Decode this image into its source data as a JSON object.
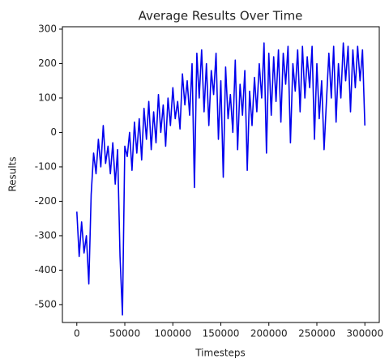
{
  "chart_data": {
    "type": "line",
    "title": "Average Results Over Time",
    "x_label": "Timesteps",
    "y_label": "Results",
    "color": "#0000ee",
    "x": [
      0,
      2500,
      5000,
      7500,
      10000,
      12500,
      15000,
      17500,
      20000,
      22500,
      25000,
      27500,
      30000,
      32500,
      35000,
      37500,
      40000,
      42500,
      45000,
      47500,
      50000,
      52500,
      55000,
      57500,
      60000,
      62500,
      65000,
      67500,
      70000,
      72500,
      75000,
      77500,
      80000,
      82500,
      85000,
      87500,
      90000,
      92500,
      95000,
      97500,
      100000,
      102500,
      105000,
      107500,
      110000,
      112500,
      115000,
      117500,
      120000,
      122500,
      125000,
      127500,
      130000,
      132500,
      135000,
      137500,
      140000,
      142500,
      145000,
      147500,
      150000,
      152500,
      155000,
      157500,
      160000,
      162500,
      165000,
      167500,
      170000,
      172500,
      175000,
      177500,
      180000,
      182500,
      185000,
      187500,
      190000,
      192500,
      195000,
      197500,
      200000,
      202500,
      205000,
      207500,
      210000,
      212500,
      215000,
      217500,
      220000,
      222500,
      225000,
      227500,
      230000,
      232500,
      235000,
      237500,
      240000,
      242500,
      245000,
      247500,
      250000,
      252500,
      255000,
      257500,
      260000,
      262500,
      265000,
      267500,
      270000,
      272500,
      275000,
      277500,
      280000,
      282500,
      285000,
      287500,
      290000,
      292500,
      295000,
      297500,
      300000
    ],
    "values": [
      -230,
      -360,
      -260,
      -350,
      -300,
      -440,
      -180,
      -60,
      -120,
      -20,
      -100,
      20,
      -90,
      -40,
      -120,
      -30,
      -150,
      -50,
      -360,
      -530,
      -40,
      -70,
      0,
      -110,
      30,
      -60,
      40,
      -80,
      70,
      -20,
      90,
      -50,
      60,
      -30,
      110,
      0,
      80,
      -40,
      100,
      20,
      130,
      40,
      90,
      10,
      170,
      80,
      150,
      50,
      200,
      -160,
      230,
      100,
      240,
      60,
      200,
      20,
      180,
      110,
      230,
      -20,
      150,
      -130,
      190,
      40,
      110,
      0,
      210,
      -50,
      140,
      50,
      180,
      -110,
      120,
      20,
      160,
      60,
      200,
      100,
      260,
      -60,
      230,
      50,
      220,
      90,
      240,
      30,
      230,
      140,
      250,
      -30,
      200,
      120,
      240,
      60,
      250,
      100,
      220,
      130,
      250,
      -20,
      200,
      40,
      150,
      -50,
      90,
      230,
      100,
      250,
      30,
      200,
      100,
      260,
      150,
      250,
      60,
      240,
      130,
      250,
      150,
      240,
      20
    ],
    "xlim": [
      -15000,
      315000
    ],
    "xticks": [
      0,
      50000,
      100000,
      150000,
      200000,
      250000,
      300000
    ],
    "ylim": [
      -552,
      307
    ],
    "yticks": [
      -500,
      -400,
      -300,
      -200,
      -100,
      0,
      100,
      200,
      300
    ]
  }
}
